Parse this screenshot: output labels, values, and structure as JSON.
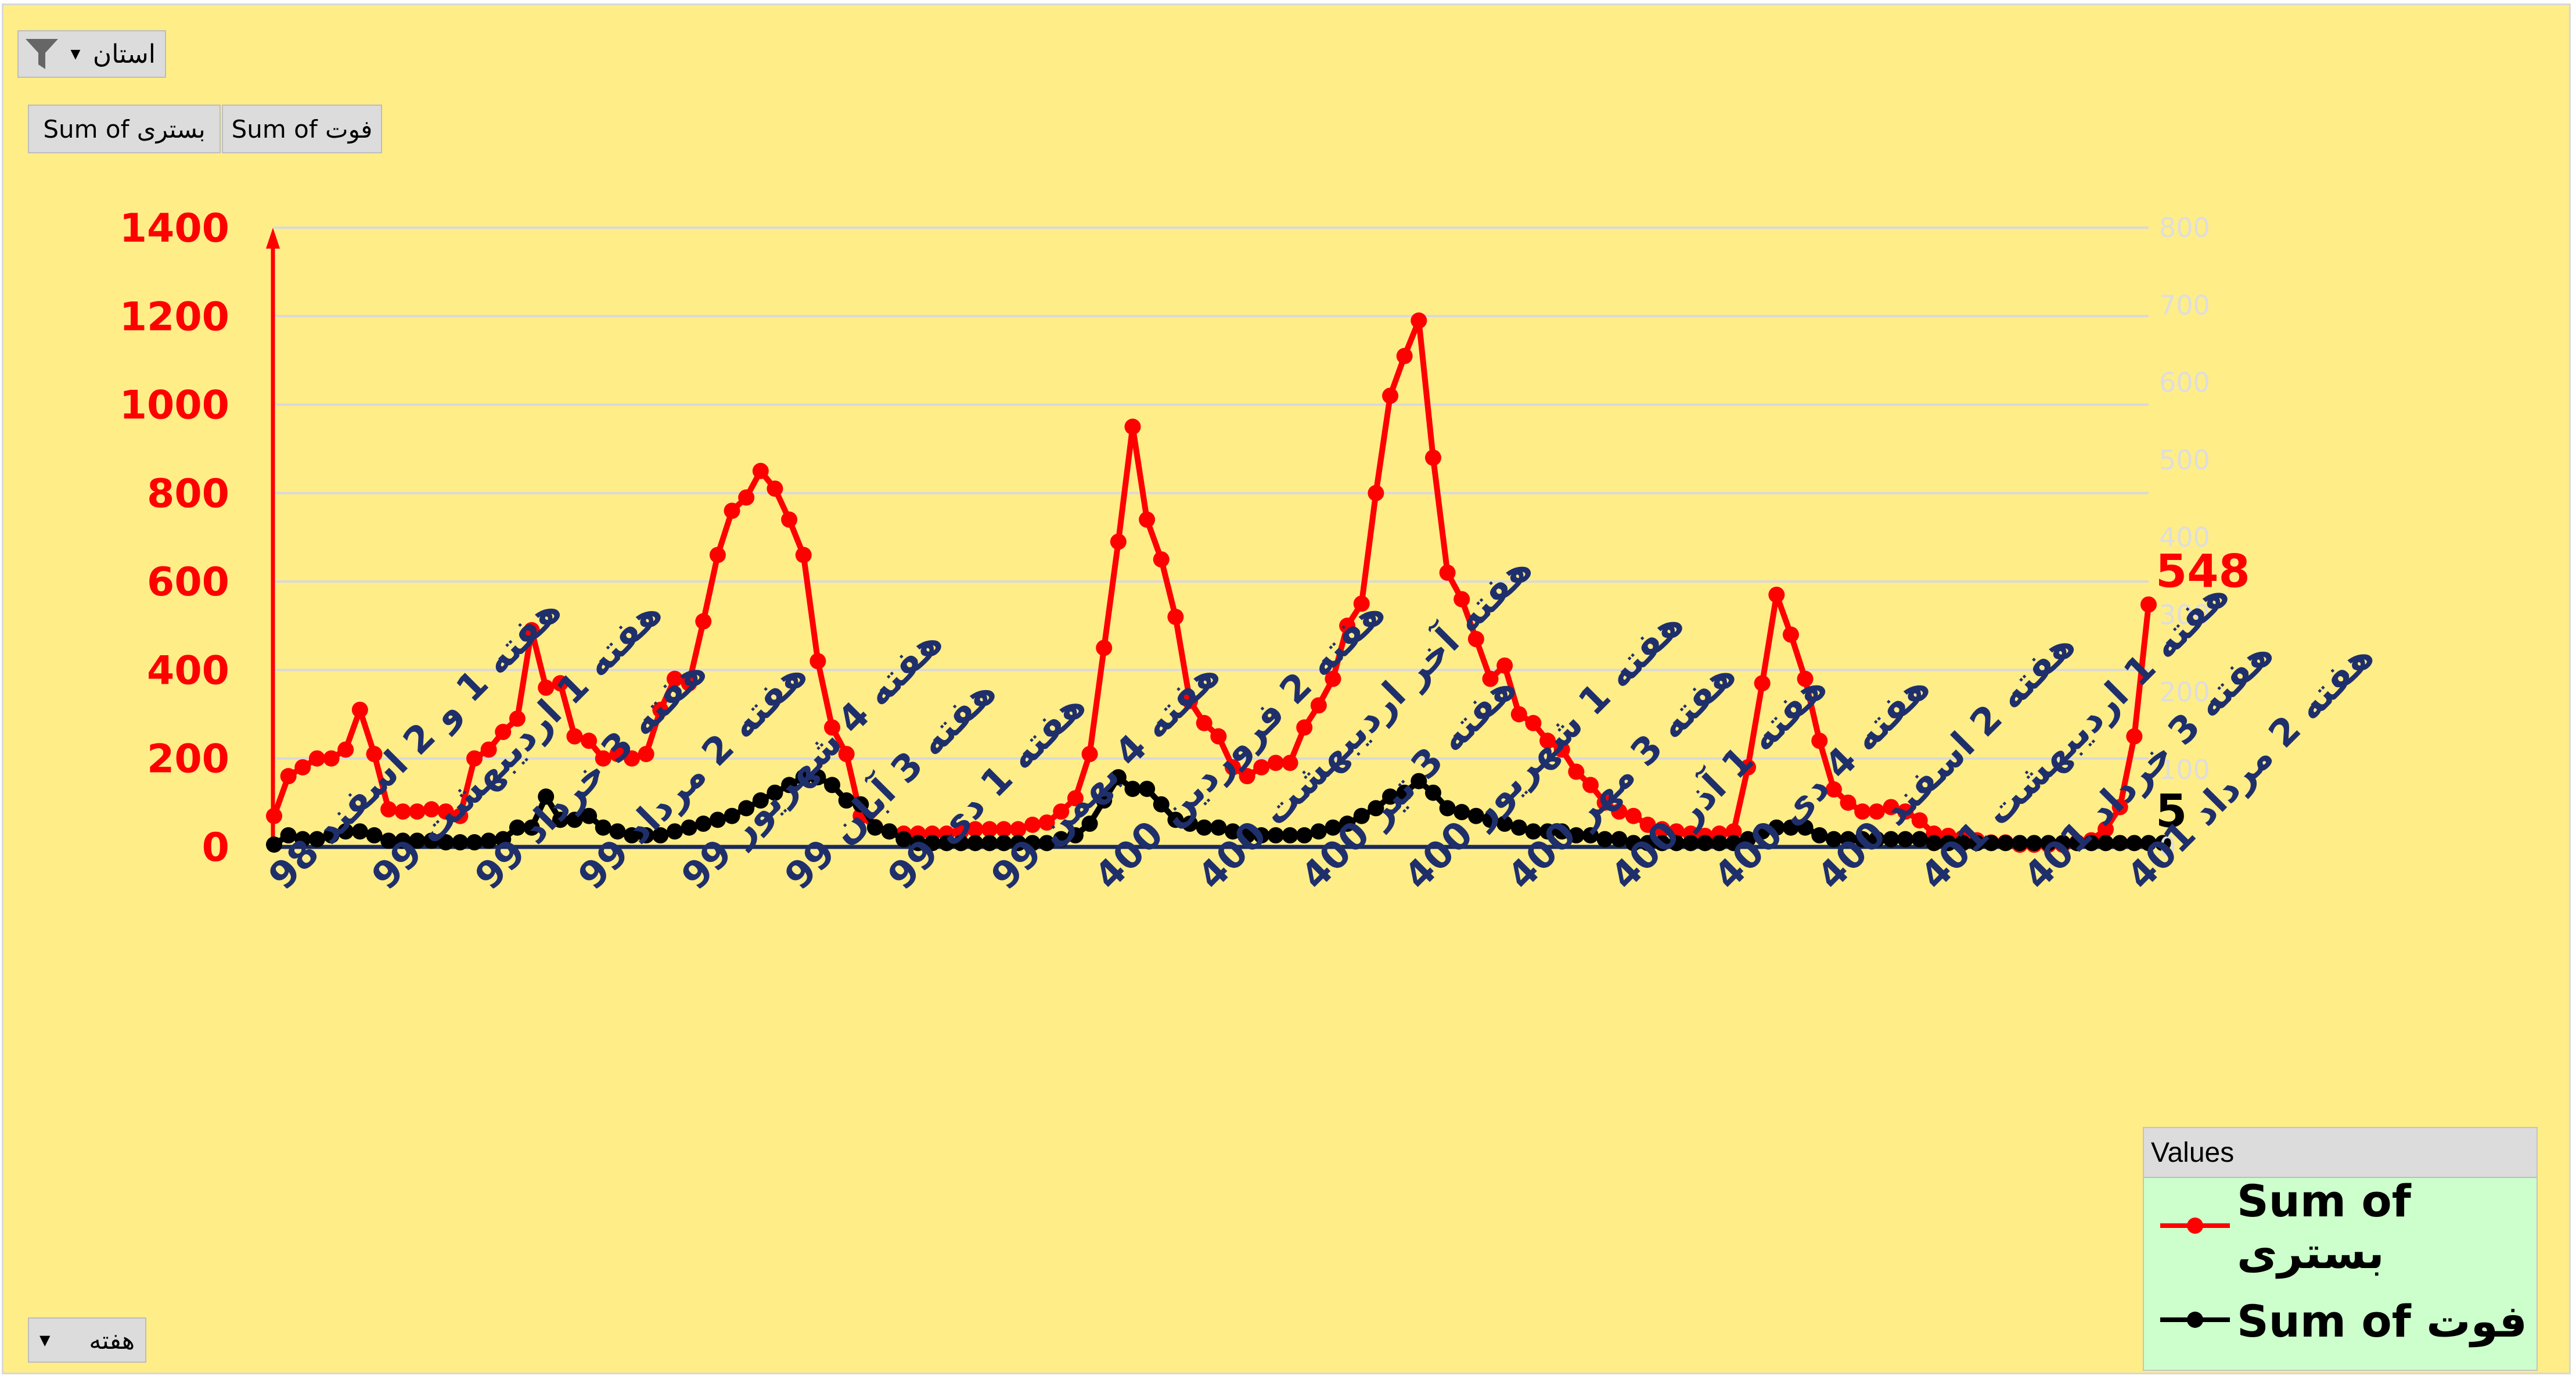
{
  "filters": {
    "report_filter_label": "استان",
    "row_field_label": "هفته"
  },
  "value_buttons": [
    "Sum of بستری",
    "Sum of فوت"
  ],
  "legend": {
    "header": "Values",
    "items": [
      "Sum of بستری",
      "Sum of فوت"
    ]
  },
  "colors": {
    "background": "#ffed88",
    "hospitalized": "#ff0000",
    "deaths": "#000000",
    "axis_label": "#1f2f6b",
    "grid": "#d9d9d9",
    "secondary_axis": "#dedede"
  },
  "icons": {
    "filter": "funnel-icon",
    "dropdown": "triangle-down-icon",
    "legend_marker": "line-marker-icon"
  },
  "chart_data": {
    "type": "line",
    "title": "",
    "xlabel": "",
    "ylabel": "",
    "ylim": [
      0,
      1400
    ],
    "y_ticks": [
      0,
      200,
      400,
      600,
      800,
      1000,
      1200,
      1400
    ],
    "y2lim": [
      0,
      800
    ],
    "y2_ticks": [
      0,
      100,
      200,
      300,
      400,
      500,
      600,
      700,
      800
    ],
    "x_tick_labels": [
      "هفته 1 و 2 اسفند 98",
      "هفته 1 اردیبهشت 99",
      "هفته 3 خرداد 99",
      "هفته 2 مرداد 99",
      "هفته 4 شهریور 99",
      "هفته 3 آبان 99",
      "هفته 1 دی 99",
      "هفته 4 بهمن 99",
      "هفته 2 فروردین 400",
      "هفته آخر اردیبهشت 400",
      "هفته 3 تیر 400",
      "هفته 1 شهریور 400",
      "هفته 3 مهر 400",
      "هفته 1 آذر 400",
      "هفته 4 دی 400",
      "هفته 2 اسفند 400",
      "هفته 1 اردیبهشت 401",
      "هفته 3 خرداد 401",
      "هفته 2 مرداد 401"
    ],
    "series": [
      {
        "name": "Sum of بستری",
        "axis": "primary",
        "end_label": "548",
        "values": [
          70,
          160,
          180,
          200,
          200,
          220,
          310,
          210,
          85,
          80,
          80,
          85,
          80,
          70,
          200,
          220,
          260,
          290,
          490,
          360,
          370,
          250,
          240,
          200,
          210,
          200,
          210,
          310,
          380,
          370,
          510,
          660,
          760,
          790,
          850,
          810,
          740,
          660,
          420,
          270,
          210,
          70,
          45,
          35,
          30,
          30,
          30,
          30,
          35,
          40,
          40,
          40,
          40,
          50,
          55,
          80,
          110,
          210,
          450,
          690,
          950,
          740,
          650,
          520,
          330,
          280,
          250,
          180,
          160,
          180,
          190,
          190,
          270,
          320,
          380,
          500,
          550,
          800,
          1020,
          1110,
          1190,
          880,
          620,
          560,
          470,
          380,
          410,
          300,
          280,
          240,
          220,
          170,
          140,
          100,
          80,
          70,
          50,
          40,
          35,
          30,
          25,
          30,
          35,
          180,
          370,
          570,
          480,
          380,
          240,
          130,
          100,
          80,
          80,
          90,
          80,
          60,
          30,
          25,
          20,
          15,
          10,
          10,
          5,
          5,
          5,
          5,
          10,
          15,
          40,
          90,
          250,
          548
        ]
      },
      {
        "name": "Sum of فوت",
        "axis": "secondary",
        "end_label": "5",
        "values": [
          3,
          15,
          10,
          10,
          15,
          20,
          20,
          15,
          8,
          8,
          8,
          8,
          6,
          6,
          6,
          8,
          10,
          25,
          25,
          65,
          35,
          35,
          40,
          25,
          20,
          15,
          15,
          15,
          20,
          25,
          30,
          35,
          40,
          50,
          60,
          70,
          80,
          90,
          90,
          80,
          60,
          55,
          25,
          20,
          10,
          5,
          5,
          5,
          5,
          5,
          5,
          5,
          5,
          5,
          5,
          10,
          15,
          30,
          60,
          90,
          75,
          75,
          55,
          35,
          30,
          25,
          25,
          20,
          15,
          15,
          15,
          15,
          15,
          20,
          25,
          30,
          40,
          50,
          65,
          70,
          85,
          70,
          50,
          45,
          40,
          35,
          30,
          25,
          20,
          20,
          20,
          15,
          15,
          10,
          10,
          5,
          5,
          5,
          5,
          5,
          5,
          5,
          5,
          10,
          20,
          25,
          25,
          25,
          15,
          10,
          10,
          10,
          10,
          10,
          10,
          10,
          5,
          5,
          5,
          5,
          5,
          5,
          5,
          5,
          5,
          5,
          5,
          5,
          5,
          5,
          5,
          5,
          5
        ]
      }
    ],
    "grid": true,
    "legend_position": "bottom-right"
  }
}
